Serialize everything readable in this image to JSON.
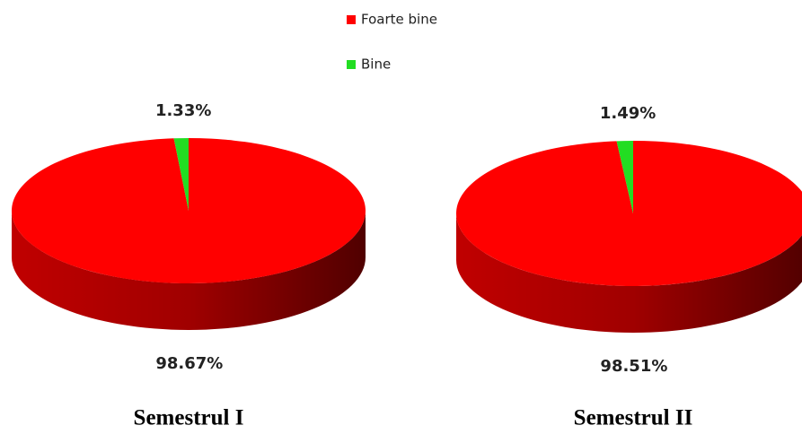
{
  "chart_data": [
    {
      "type": "pie",
      "title": "Semestrul I",
      "categories": [
        "Foarte bine",
        "Bine"
      ],
      "colors": [
        "#ff0000",
        "#22dd22"
      ],
      "values": [
        98.67,
        1.33
      ],
      "value_labels": [
        "98.67%",
        "1.33%"
      ]
    },
    {
      "type": "pie",
      "title": "Semestrul II",
      "values": [
        98.51,
        1.49
      ],
      "value_labels": [
        "98.51%",
        "1.49%"
      ]
    }
  ]
}
